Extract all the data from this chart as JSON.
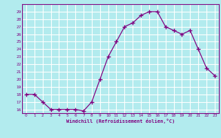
{
  "x": [
    0,
    1,
    2,
    3,
    4,
    5,
    6,
    7,
    8,
    9,
    10,
    11,
    12,
    13,
    14,
    15,
    16,
    17,
    18,
    19,
    20,
    21,
    22,
    23
  ],
  "y": [
    18,
    18,
    17,
    16,
    16,
    16,
    16,
    15.8,
    17,
    20,
    23,
    25,
    27,
    27.5,
    28.5,
    29,
    29,
    27,
    26.5,
    26,
    26.5,
    24,
    21.5,
    20.5
  ],
  "line_color": "#800080",
  "marker": "+",
  "bg_color": "#b2ebee",
  "grid_color": "#ffffff",
  "xlabel": "Windchill (Refroidissement éolien,°C)",
  "xlabel_color": "#800080",
  "tick_color": "#800080",
  "yticks": [
    16,
    17,
    18,
    19,
    20,
    21,
    22,
    23,
    24,
    25,
    26,
    27,
    28,
    29
  ],
  "xticks": [
    0,
    1,
    2,
    3,
    4,
    5,
    6,
    7,
    8,
    9,
    10,
    11,
    12,
    13,
    14,
    15,
    16,
    17,
    18,
    19,
    20,
    21,
    22,
    23
  ],
  "ylim": [
    15.5,
    30
  ],
  "xlim": [
    -0.5,
    23.5
  ]
}
